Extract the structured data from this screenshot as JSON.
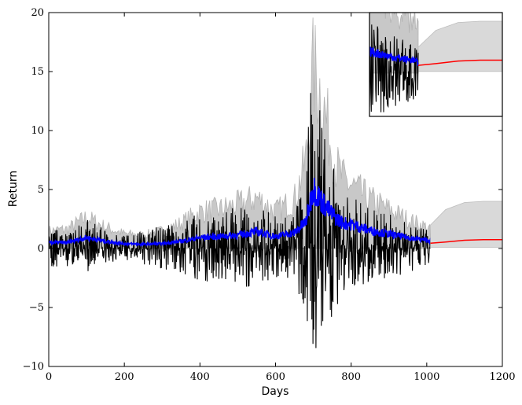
{
  "chart_data": {
    "type": "line",
    "title": "",
    "xlabel": "Days",
    "ylabel": "Return",
    "xlim": [
      0,
      1200
    ],
    "ylim": [
      -10,
      20
    ],
    "xticks": [
      0,
      200,
      400,
      600,
      800,
      1000,
      1200
    ],
    "yticks": [
      -10,
      -5,
      0,
      5,
      10,
      15,
      20
    ],
    "grid": false,
    "legend": "none",
    "colors": {
      "returns": "#000000",
      "volatility": "#0000ff",
      "band": "#c8c8c8",
      "forecast": "#ff0000",
      "forecast_band": "#d9d9d9"
    },
    "series": [
      {
        "key": "returns",
        "x": [
          0,
          50,
          100,
          150,
          200,
          250,
          300,
          350,
          400,
          450,
          500,
          550,
          600,
          650,
          680,
          700,
          720,
          740,
          760,
          780,
          800,
          850,
          900,
          950,
          1000,
          1010
        ],
        "y_low": [
          -1.8,
          -1.5,
          -2.0,
          -1.2,
          -1.0,
          -1.4,
          -2.0,
          -2.2,
          -2.8,
          -3.0,
          -3.2,
          -3.5,
          -2.5,
          -3.0,
          -5.5,
          -9.0,
          -8.8,
          -7.5,
          -5.0,
          -4.0,
          -3.8,
          -3.2,
          -2.8,
          -2.0,
          -1.6,
          -1.0
        ],
        "y_high": [
          1.8,
          1.5,
          2.6,
          1.6,
          1.2,
          1.5,
          2.0,
          2.4,
          3.0,
          3.2,
          3.5,
          3.8,
          2.8,
          3.5,
          7.0,
          17.0,
          13.5,
          9.5,
          6.0,
          5.0,
          4.5,
          3.5,
          3.0,
          2.2,
          1.8,
          1.2
        ]
      },
      {
        "key": "volatility",
        "x": [
          0,
          50,
          100,
          150,
          200,
          250,
          300,
          350,
          400,
          450,
          500,
          550,
          600,
          650,
          680,
          700,
          720,
          740,
          760,
          780,
          800,
          850,
          900,
          950,
          1000,
          1010
        ],
        "y": [
          0.5,
          0.5,
          0.9,
          0.6,
          0.4,
          0.35,
          0.4,
          0.6,
          0.9,
          1.0,
          1.1,
          1.4,
          1.0,
          1.3,
          2.2,
          5.0,
          4.0,
          3.2,
          2.5,
          2.1,
          2.0,
          1.5,
          1.2,
          0.9,
          0.7,
          0.6
        ]
      },
      {
        "key": "band",
        "x": [
          0,
          50,
          100,
          150,
          200,
          250,
          300,
          350,
          400,
          450,
          500,
          550,
          600,
          650,
          680,
          700,
          720,
          740,
          760,
          780,
          800,
          850,
          900,
          950,
          1000,
          1010
        ],
        "y_high": [
          1.8,
          2.0,
          3.2,
          2.2,
          1.5,
          1.4,
          1.8,
          2.6,
          3.8,
          4.0,
          4.5,
          5.2,
          3.8,
          5.0,
          9.0,
          18.5,
          16.0,
          12.0,
          8.5,
          7.0,
          6.5,
          5.0,
          4.0,
          3.0,
          2.2,
          1.8
        ]
      },
      {
        "key": "forecast",
        "x": [
          1010,
          1050,
          1100,
          1150,
          1200
        ],
        "y": [
          0.45,
          0.55,
          0.7,
          0.75,
          0.75
        ],
        "y_band": [
          2.0,
          3.3,
          3.9,
          4.0,
          4.0
        ]
      }
    ]
  }
}
